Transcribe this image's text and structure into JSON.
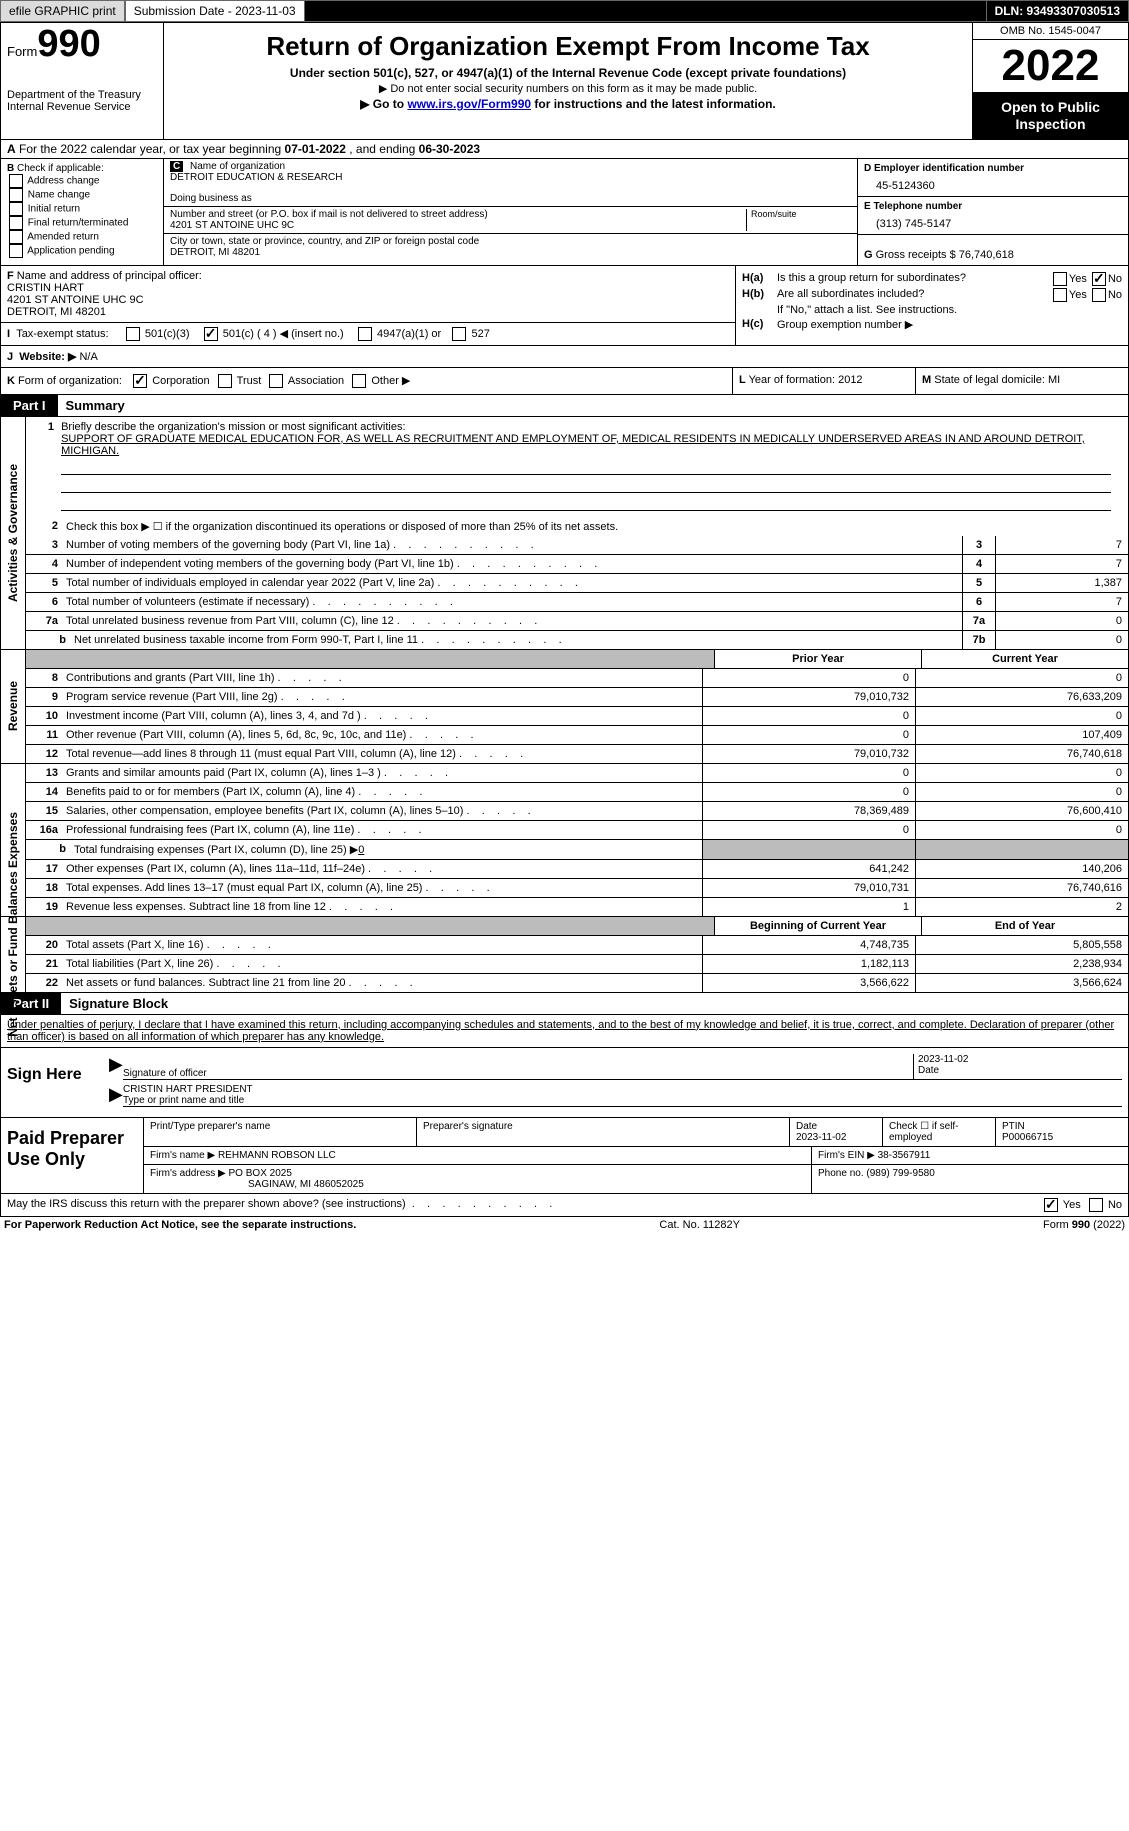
{
  "topbar": {
    "efile_label": "efile GRAPHIC print",
    "submission_label": "Submission Date - 2023-11-03",
    "dln_label": "DLN: 93493307030513"
  },
  "header": {
    "form_word": "Form",
    "form_num": "990",
    "dept": "Department of the Treasury",
    "irs": "Internal Revenue Service",
    "title": "Return of Organization Exempt From Income Tax",
    "sub1": "Under section 501(c), 527, or 4947(a)(1) of the Internal Revenue Code (except private foundations)",
    "sub2": "▶ Do not enter social security numbers on this form as it may be made public.",
    "sub3_pre": "▶ Go to ",
    "sub3_link": "www.irs.gov/Form990",
    "sub3_post": " for instructions and the latest information.",
    "omb": "OMB No. 1545-0047",
    "year": "2022",
    "open": "Open to Public Inspection"
  },
  "lineA": {
    "label_a": "A",
    "text_pre": "For the 2022 calendar year, or tax year beginning ",
    "begin": "07-01-2022",
    "mid": " , and ending ",
    "end": "06-30-2023"
  },
  "colB": {
    "label": "B",
    "intro": " Check if applicable:",
    "items": [
      "Address change",
      "Name change",
      "Initial return",
      "Final return/terminated",
      "Amended return",
      "Application pending"
    ]
  },
  "colC": {
    "label": "C",
    "name_hint": "Name of organization",
    "name": "DETROIT EDUCATION & RESEARCH",
    "dba_hint": "Doing business as",
    "street_hint": "Number and street (or P.O. box if mail is not delivered to street address)",
    "street": "4201 ST ANTOINE UHC 9C",
    "room_hint": "Room/suite",
    "city_hint": "City or town, state or province, country, and ZIP or foreign postal code",
    "city": "DETROIT, MI  48201"
  },
  "colD": {
    "d_label": "D Employer identification number",
    "ein": "45-5124360",
    "e_label": "E Telephone number",
    "phone": "(313) 745-5147",
    "g_label": "G",
    "g_text": " Gross receipts $ ",
    "g_val": "76,740,618"
  },
  "rowF": {
    "label": "F",
    "hint": " Name and address of principal officer:",
    "name": "CRISTIN HART",
    "addr1": "4201 ST ANTOINE UHC 9C",
    "addr2": "DETROIT, MI  48201"
  },
  "rowH": {
    "ha_label": "H(a)",
    "ha_text": " Is this a group return for subordinates?",
    "hb_label": "H(b)",
    "hb_text": " Are all subordinates included?",
    "hb_note": "If \"No,\" attach a list. See instructions.",
    "hc_label": "H(c)",
    "hc_text": " Group exemption number ▶",
    "yes": "Yes",
    "no": "No"
  },
  "rowI": {
    "label": "I",
    "text": "Tax-exempt status:",
    "opts": [
      "501(c)(3)",
      "501(c) ( 4 ) ◀ (insert no.)",
      "4947(a)(1) or",
      "527"
    ]
  },
  "rowJ": {
    "label": "J",
    "text": "Website: ▶",
    "val": "  N/A"
  },
  "rowK": {
    "label": "K",
    "text": " Form of organization:",
    "opts": [
      "Corporation",
      "Trust",
      "Association",
      "Other ▶"
    ]
  },
  "rowL": {
    "label": "L",
    "text": " Year of formation: ",
    "val": "2012"
  },
  "rowM": {
    "label": "M",
    "text": " State of legal domicile: ",
    "val": "MI"
  },
  "partI": {
    "tab": "Part I",
    "title": "Summary"
  },
  "mission": {
    "num": "1",
    "intro": "Briefly describe the organization's mission or most significant activities:",
    "text": "SUPPORT OF GRADUATE MEDICAL EDUCATION FOR, AS WELL AS RECRUITMENT AND EMPLOYMENT OF, MEDICAL RESIDENTS IN MEDICALLY UNDERSERVED AREAS IN AND AROUND DETROIT, MICHIGAN."
  },
  "vert": {
    "activities": "Activities & Governance",
    "revenue": "Revenue",
    "expenses": "Expenses",
    "netassets": "Net Assets or Fund Balances"
  },
  "lines_gov": [
    {
      "n": "2",
      "d": "Check this box ▶ ☐ if the organization discontinued its operations or disposed of more than 25% of its net assets.",
      "noVal": true
    },
    {
      "n": "3",
      "d": "Number of voting members of the governing body (Part VI, line 1a)",
      "box": "3",
      "v": "7"
    },
    {
      "n": "4",
      "d": "Number of independent voting members of the governing body (Part VI, line 1b)",
      "box": "4",
      "v": "7"
    },
    {
      "n": "5",
      "d": "Total number of individuals employed in calendar year 2022 (Part V, line 2a)",
      "box": "5",
      "v": "1,387"
    },
    {
      "n": "6",
      "d": "Total number of volunteers (estimate if necessary)",
      "box": "6",
      "v": "7"
    },
    {
      "n": "7a",
      "d": "Total unrelated business revenue from Part VIII, column (C), line 12",
      "box": "7a",
      "v": "0"
    },
    {
      "n": "b",
      "d": "Net unrelated business taxable income from Form 990-T, Part I, line 11",
      "box": "7b",
      "v": "0",
      "indent": true
    }
  ],
  "year_headers": {
    "prior": "Prior Year",
    "current": "Current Year"
  },
  "lines_rev": [
    {
      "n": "8",
      "d": "Contributions and grants (Part VIII, line 1h)",
      "p": "0",
      "c": "0"
    },
    {
      "n": "9",
      "d": "Program service revenue (Part VIII, line 2g)",
      "p": "79,010,732",
      "c": "76,633,209"
    },
    {
      "n": "10",
      "d": "Investment income (Part VIII, column (A), lines 3, 4, and 7d )",
      "p": "0",
      "c": "0"
    },
    {
      "n": "11",
      "d": "Other revenue (Part VIII, column (A), lines 5, 6d, 8c, 9c, 10c, and 11e)",
      "p": "0",
      "c": "107,409"
    },
    {
      "n": "12",
      "d": "Total revenue—add lines 8 through 11 (must equal Part VIII, column (A), line 12)",
      "p": "79,010,732",
      "c": "76,740,618"
    }
  ],
  "lines_exp": [
    {
      "n": "13",
      "d": "Grants and similar amounts paid (Part IX, column (A), lines 1–3 )",
      "p": "0",
      "c": "0"
    },
    {
      "n": "14",
      "d": "Benefits paid to or for members (Part IX, column (A), line 4)",
      "p": "0",
      "c": "0"
    },
    {
      "n": "15",
      "d": "Salaries, other compensation, employee benefits (Part IX, column (A), lines 5–10)",
      "p": "78,369,489",
      "c": "76,600,410"
    },
    {
      "n": "16a",
      "d": "Professional fundraising fees (Part IX, column (A), line 11e)",
      "p": "0",
      "c": "0"
    },
    {
      "n": "b",
      "d_html": "Total fundraising expenses (Part IX, column (D), line 25) ▶",
      "d_val": "0",
      "grey": true,
      "indent": true
    },
    {
      "n": "17",
      "d": "Other expenses (Part IX, column (A), lines 11a–11d, 11f–24e)",
      "p": "641,242",
      "c": "140,206"
    },
    {
      "n": "18",
      "d": "Total expenses. Add lines 13–17 (must equal Part IX, column (A), line 25)",
      "p": "79,010,731",
      "c": "76,740,616"
    },
    {
      "n": "19",
      "d": "Revenue less expenses. Subtract line 18 from line 12",
      "p": "1",
      "c": "2"
    }
  ],
  "year_headers2": {
    "begin": "Beginning of Current Year",
    "end": "End of Year"
  },
  "lines_net": [
    {
      "n": "20",
      "d": "Total assets (Part X, line 16)",
      "p": "4,748,735",
      "c": "5,805,558"
    },
    {
      "n": "21",
      "d": "Total liabilities (Part X, line 26)",
      "p": "1,182,113",
      "c": "2,238,934"
    },
    {
      "n": "22",
      "d": "Net assets or fund balances. Subtract line 21 from line 20",
      "p": "3,566,622",
      "c": "3,566,624"
    }
  ],
  "partII": {
    "tab": "Part II",
    "title": "Signature Block"
  },
  "sig": {
    "intro": "Under penalties of perjury, I declare that I have examined this return, including accompanying schedules and statements, and to the best of my knowledge and belief, it is true, correct, and complete. Declaration of preparer (other than officer) is based on all information of which preparer has any knowledge.",
    "sign_here": "Sign Here",
    "sig_officer": "Signature of officer",
    "date_lbl": "Date",
    "date_val": "2023-11-02",
    "name_title": "CRISTIN HART PRESIDENT",
    "name_hint": "Type or print name and title"
  },
  "prep": {
    "title": "Paid Preparer Use Only",
    "r1": {
      "c1_lbl": "Print/Type preparer's name",
      "c1_val": "",
      "c2_lbl": "Preparer's signature",
      "c3_lbl": "Date",
      "c3_val": "2023-11-02",
      "c4_lbl": "Check ☐ if self-employed",
      "c5_lbl": "PTIN",
      "c5_val": "P00066715"
    },
    "r2": {
      "lbl": "Firm's name    ▶ ",
      "val": "REHMANN ROBSON LLC",
      "ein_lbl": "Firm's EIN ▶ ",
      "ein": "38-3567911"
    },
    "r3": {
      "lbl": "Firm's address ▶ ",
      "val1": "PO BOX 2025",
      "val2": "SAGINAW, MI  486052025",
      "ph_lbl": "Phone no. ",
      "ph": "(989) 799-9580"
    }
  },
  "bottom": {
    "q": "May the IRS discuss this return with the preparer shown above? (see instructions)",
    "yes": "Yes",
    "no": "No"
  },
  "footer": {
    "left": "For Paperwork Reduction Act Notice, see the separate instructions.",
    "mid": "Cat. No. 11282Y",
    "right": "Form 990 (2022)"
  }
}
